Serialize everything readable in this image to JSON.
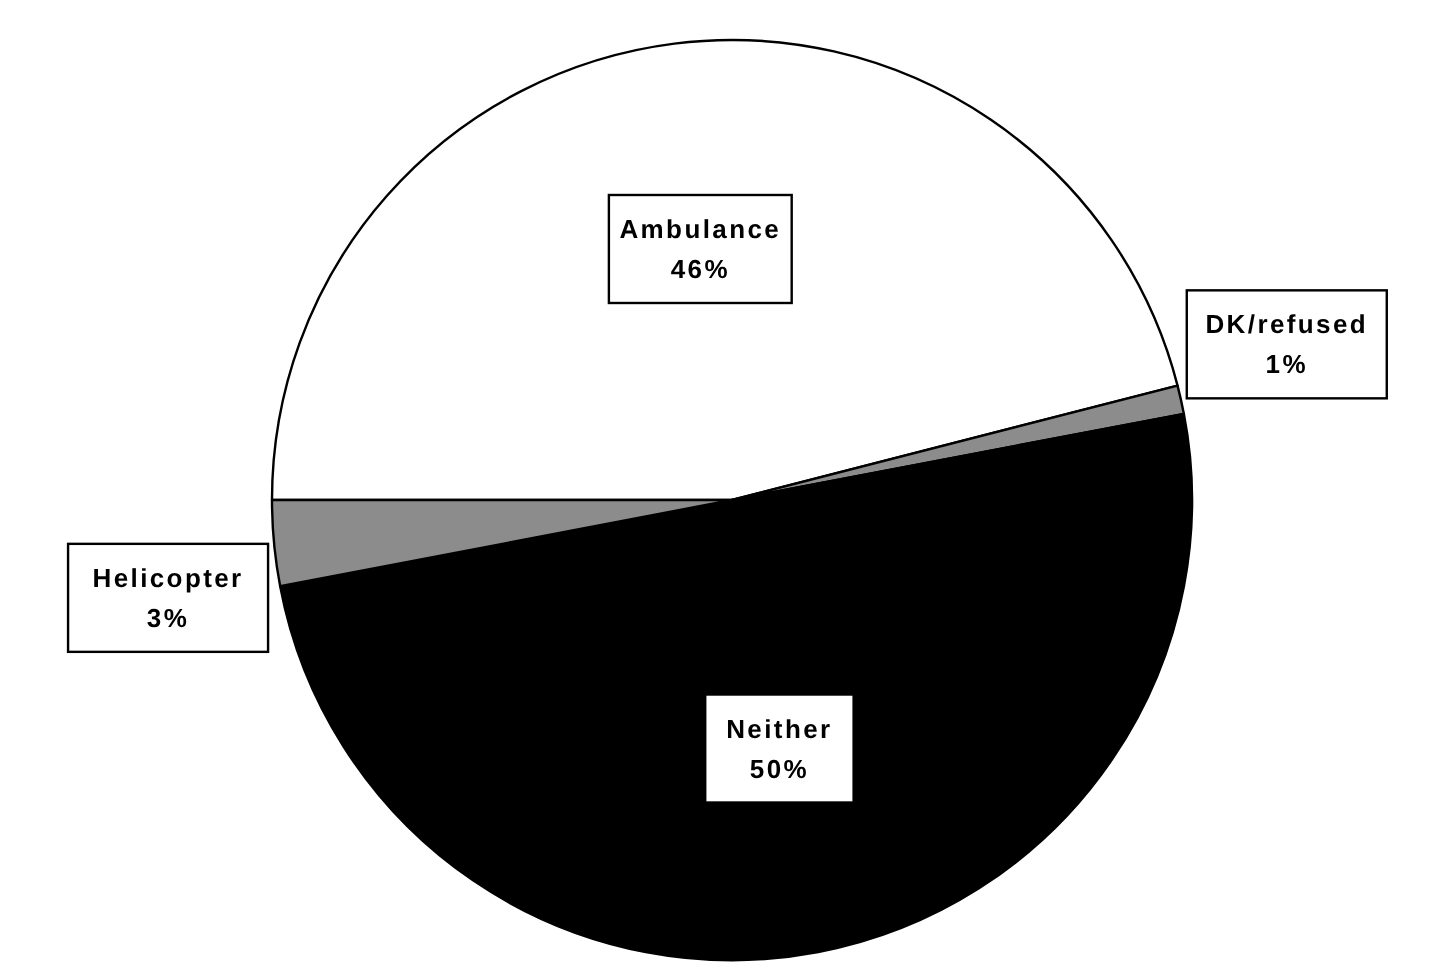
{
  "chart_data": {
    "type": "pie",
    "categories": [
      "Ambulance",
      "DK/refused",
      "Neither",
      "Helicopter"
    ],
    "values": [
      46,
      1,
      50,
      3
    ],
    "value_labels": [
      "46%",
      "1%",
      "50%",
      "3%"
    ],
    "colors": [
      "#ffffff",
      "#8c8c8c",
      "#000000",
      "#8c8c8c"
    ]
  }
}
